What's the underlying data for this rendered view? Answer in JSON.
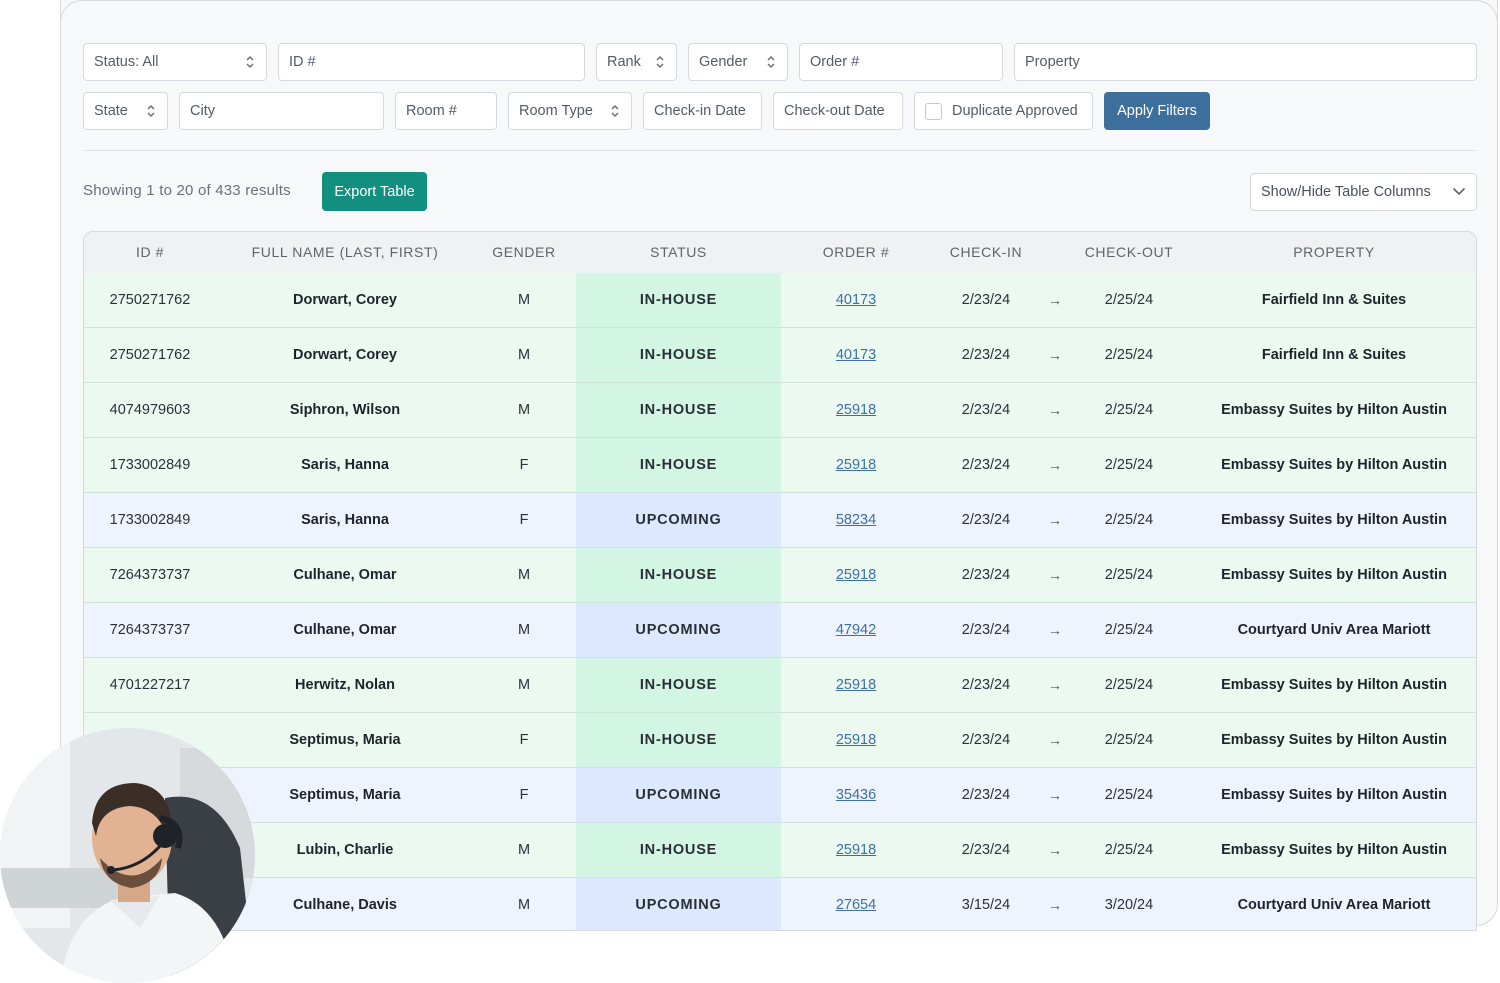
{
  "filters": {
    "status": "Status: All",
    "id_placeholder": "ID #",
    "rank": "Rank",
    "gender": "Gender",
    "order_placeholder": "Order #",
    "property_placeholder": "Property",
    "state": "State",
    "city_placeholder": "City",
    "room_placeholder": "Room #",
    "room_type": "Room Type",
    "checkin_placeholder": "Check-in Date",
    "checkout_placeholder": "Check-out Date",
    "duplicate_label": "Duplicate Approved",
    "duplicate_checked": false,
    "apply_label": "Apply Filters"
  },
  "toolbar": {
    "results_text": "Showing 1 to 20 of 433 results",
    "export_label": "Export Table",
    "columns_label": "Show/Hide Table Columns"
  },
  "table": {
    "headers": [
      "ID #",
      "FULL NAME (LAST, FIRST)",
      "GENDER",
      "STATUS",
      "ORDER #",
      "CHECK-IN",
      "CHECK-OUT",
      "PROPERTY"
    ],
    "arrow": "→",
    "rows": [
      {
        "id": "2750271762",
        "name": "Dorwart, Corey",
        "gender": "M",
        "status": "IN-HOUSE",
        "order": "40173",
        "checkin": "2/23/24",
        "checkout": "2/25/24",
        "property": "Fairfield Inn & Suites"
      },
      {
        "id": "2750271762",
        "name": "Dorwart, Corey",
        "gender": "M",
        "status": "IN-HOUSE",
        "order": "40173",
        "checkin": "2/23/24",
        "checkout": "2/25/24",
        "property": "Fairfield Inn & Suites"
      },
      {
        "id": "4074979603",
        "name": "Siphron, Wilson",
        "gender": "M",
        "status": "IN-HOUSE",
        "order": "25918",
        "checkin": "2/23/24",
        "checkout": "2/25/24",
        "property": "Embassy Suites by Hilton Austin"
      },
      {
        "id": "1733002849",
        "name": "Saris, Hanna",
        "gender": "F",
        "status": "IN-HOUSE",
        "order": "25918",
        "checkin": "2/23/24",
        "checkout": "2/25/24",
        "property": "Embassy Suites by Hilton Austin"
      },
      {
        "id": "1733002849",
        "name": "Saris, Hanna",
        "gender": "F",
        "status": "UPCOMING",
        "order": "58234",
        "checkin": "2/23/24",
        "checkout": "2/25/24",
        "property": "Embassy Suites by Hilton Austin"
      },
      {
        "id": "7264373737",
        "name": "Culhane, Omar",
        "gender": "M",
        "status": "IN-HOUSE",
        "order": "25918",
        "checkin": "2/23/24",
        "checkout": "2/25/24",
        "property": "Embassy Suites by Hilton Austin"
      },
      {
        "id": "7264373737",
        "name": "Culhane, Omar",
        "gender": "M",
        "status": "UPCOMING",
        "order": "47942",
        "checkin": "2/23/24",
        "checkout": "2/25/24",
        "property": "Courtyard Univ Area Mariott"
      },
      {
        "id": "4701227217",
        "name": "Herwitz, Nolan",
        "gender": "M",
        "status": "IN-HOUSE",
        "order": "25918",
        "checkin": "2/23/24",
        "checkout": "2/25/24",
        "property": "Embassy Suites by Hilton Austin"
      },
      {
        "id": "",
        "name": "Septimus, Maria",
        "gender": "F",
        "status": "IN-HOUSE",
        "order": "25918",
        "checkin": "2/23/24",
        "checkout": "2/25/24",
        "property": "Embassy Suites by Hilton Austin"
      },
      {
        "id": "",
        "name": "Septimus, Maria",
        "gender": "F",
        "status": "UPCOMING",
        "order": "35436",
        "checkin": "2/23/24",
        "checkout": "2/25/24",
        "property": "Embassy Suites by Hilton Austin"
      },
      {
        "id": "",
        "name": "Lubin, Charlie",
        "gender": "M",
        "status": "IN-HOUSE",
        "order": "25918",
        "checkin": "2/23/24",
        "checkout": "2/25/24",
        "property": "Embassy Suites by Hilton Austin"
      },
      {
        "id": "",
        "name": "Culhane, Davis",
        "gender": "M",
        "status": "UPCOMING",
        "order": "27654",
        "checkin": "3/15/24",
        "checkout": "3/20/24",
        "property": "Courtyard Univ Area Mariott"
      }
    ]
  },
  "colors": {
    "apply_button": "#3d6f9c",
    "export_button": "#138f80",
    "inhouse_row": "#ebf9f1",
    "inhouse_status": "#d3f5e3",
    "upcoming_row": "#eef4fd",
    "upcoming_status": "#dbe8fd",
    "order_link": "#3f6fa3"
  },
  "icons": {
    "select_arrows": "updown-chevron-icon",
    "dropdown": "chevron-down-icon",
    "avatar": "support-agent-avatar"
  }
}
